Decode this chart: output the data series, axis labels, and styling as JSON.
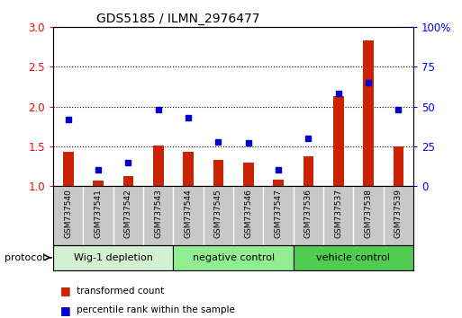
{
  "title": "GDS5185 / ILMN_2976477",
  "samples": [
    "GSM737540",
    "GSM737541",
    "GSM737542",
    "GSM737543",
    "GSM737544",
    "GSM737545",
    "GSM737546",
    "GSM737547",
    "GSM737536",
    "GSM737537",
    "GSM737538",
    "GSM737539"
  ],
  "transformed_count": [
    1.43,
    1.07,
    1.12,
    1.51,
    1.43,
    1.33,
    1.3,
    1.08,
    1.37,
    2.13,
    2.83,
    1.5
  ],
  "percentile_rank": [
    42,
    10,
    15,
    48,
    43,
    28,
    27,
    10,
    30,
    58,
    65,
    48
  ],
  "groups": [
    {
      "label": "Wig-1 depletion",
      "start": 0,
      "end": 3,
      "color": "#d4f0d4"
    },
    {
      "label": "negative control",
      "start": 4,
      "end": 7,
      "color": "#90ee90"
    },
    {
      "label": "vehicle control",
      "start": 8,
      "end": 11,
      "color": "#50cc50"
    }
  ],
  "ylim_left": [
    1.0,
    3.0
  ],
  "ylim_right": [
    0,
    100
  ],
  "yticks_left": [
    1.0,
    1.5,
    2.0,
    2.5,
    3.0
  ],
  "yticks_right": [
    0,
    25,
    50,
    75,
    100
  ],
  "yticklabels_right": [
    "0",
    "25",
    "50",
    "75",
    "100%"
  ],
  "bar_color": "#cc2200",
  "dot_color": "#0000cc",
  "sample_bg_color": "#c8c8c8",
  "label_transformed": "transformed count",
  "label_percentile": "percentile rank within the sample",
  "protocol_label": "protocol"
}
